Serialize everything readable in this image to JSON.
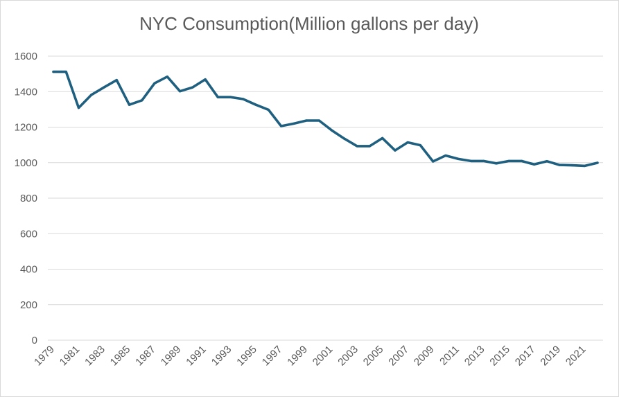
{
  "chart_data": {
    "type": "line",
    "title": "NYC Consumption(Million gallons per day)",
    "xlabel": "",
    "ylabel": "",
    "ylim": [
      0,
      1600
    ],
    "y_ticks": [
      "0",
      "200",
      "400",
      "600",
      "800",
      "1000",
      "1200",
      "1400",
      "1600"
    ],
    "x_tick_labels": [
      "1979",
      "1981",
      "1983",
      "1985",
      "1987",
      "1989",
      "1991",
      "1993",
      "1995",
      "1997",
      "1999",
      "2001",
      "2003",
      "2005",
      "2007",
      "2009",
      "2011",
      "2013",
      "2015",
      "2017",
      "2019",
      "2021"
    ],
    "grid": "horizontal",
    "legend": "none",
    "line_color": "#1f5f7f",
    "grid_color": "#d9d9d9",
    "x": [
      1979,
      1980,
      1981,
      1982,
      1983,
      1984,
      1985,
      1986,
      1987,
      1988,
      1989,
      1990,
      1991,
      1992,
      1993,
      1994,
      1995,
      1996,
      1997,
      1998,
      1999,
      2000,
      2001,
      2002,
      2003,
      2004,
      2005,
      2006,
      2007,
      2008,
      2009,
      2010,
      2011,
      2012,
      2013,
      2014,
      2015,
      2016,
      2017,
      2018,
      2019,
      2020,
      2021,
      2022
    ],
    "series": [
      {
        "values": [
          1512,
          1512,
          1309,
          1382,
          1424,
          1465,
          1326,
          1351,
          1447,
          1484,
          1402,
          1424,
          1469,
          1369,
          1369,
          1358,
          1326,
          1298,
          1206,
          1220,
          1237,
          1237,
          1182,
          1135,
          1093,
          1093,
          1138,
          1069,
          1114,
          1098,
          1007,
          1040,
          1021,
          1009,
          1009,
          996,
          1009,
          1009,
          990,
          1008,
          987,
          985,
          982,
          999
        ]
      }
    ]
  }
}
